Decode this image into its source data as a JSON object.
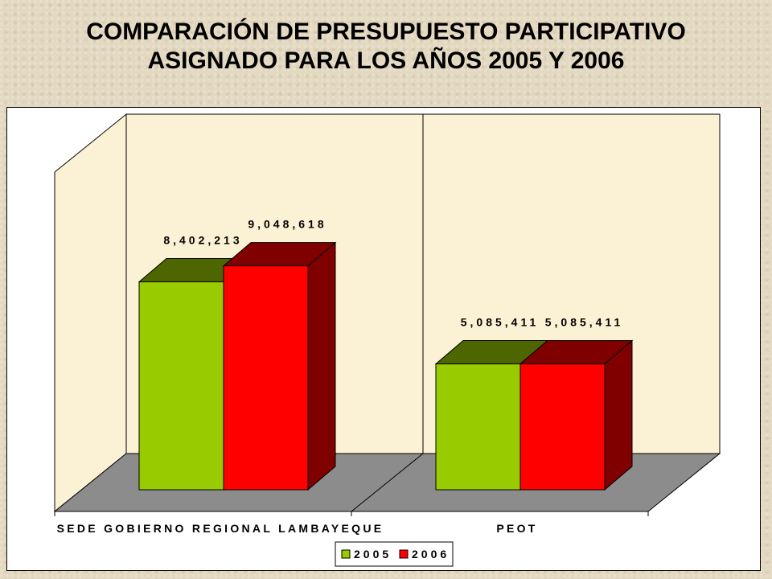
{
  "title": {
    "line1": "COMPARACIÓN DE PRESUPUESTO PARTICIPATIVO",
    "line2": "ASIGNADO PARA LOS AÑOS 2005 Y 2006"
  },
  "chart_data": {
    "type": "bar",
    "categories": [
      "SEDE GOBIERNO REGIONAL LAMBAYEQUE",
      "PEOT"
    ],
    "series": [
      {
        "name": "2005",
        "values": [
          8402213,
          5085411
        ],
        "labels": [
          "8,402,213",
          "5,085,411"
        ]
      },
      {
        "name": "2006",
        "values": [
          9048618,
          5085411
        ],
        "labels": [
          "9,048,618",
          "5,085,411"
        ]
      }
    ],
    "ylim": [
      0,
      13000000
    ],
    "legend_position": "bottom",
    "grid": false,
    "three_d": true,
    "colors": {
      "2005": "#99cc00",
      "2006": "#ff0000",
      "2005_dark": "#4d6600",
      "2006_dark": "#800000",
      "wall": "#fbf1d4",
      "floor": "#8c8c8c"
    }
  }
}
